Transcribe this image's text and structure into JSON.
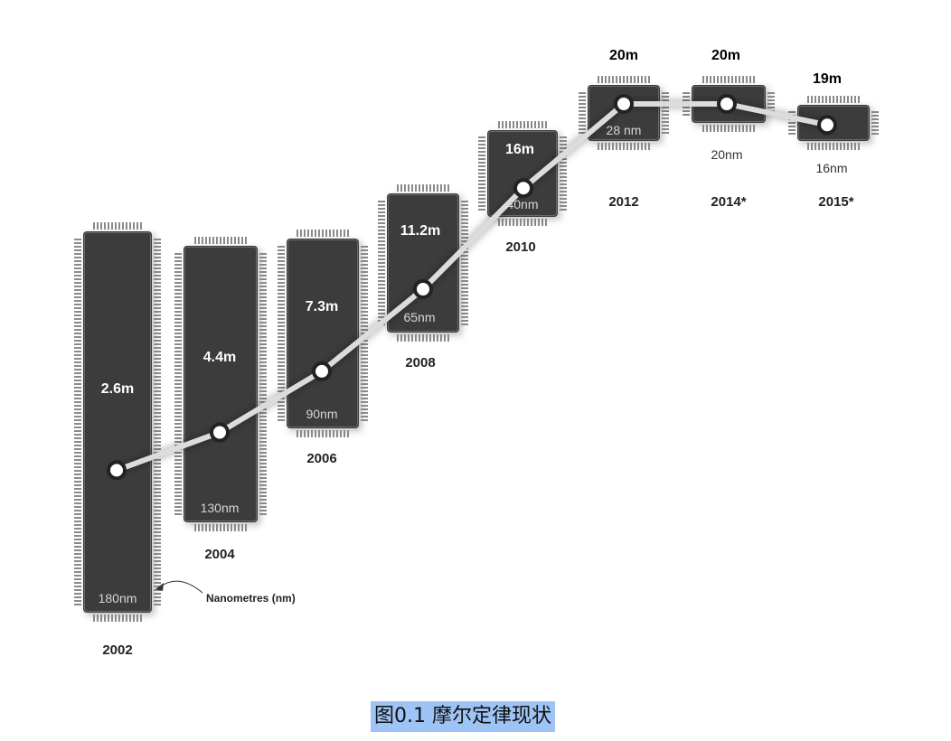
{
  "chart_data": {
    "type": "line",
    "x": [
      "2002",
      "2004",
      "2006",
      "2008",
      "2010",
      "2012",
      "2014*",
      "2015*"
    ],
    "series": [
      {
        "values": [
          2.6,
          4.4,
          7.3,
          11.2,
          16,
          20,
          20,
          19
        ],
        "value_labels": [
          "2.6m",
          "4.4m",
          "7.3m",
          "11.2m",
          "16m",
          "20m",
          "20m",
          "19m"
        ]
      }
    ],
    "process_nodes": [
      "180nm",
      "130nm",
      "90nm",
      "65nm",
      "40nm",
      "28 nm",
      "20nm",
      "16nm"
    ],
    "annotations": [
      {
        "text": "Nanometres (nm)"
      }
    ]
  },
  "caption": "图0.1 摩尔定律现状"
}
